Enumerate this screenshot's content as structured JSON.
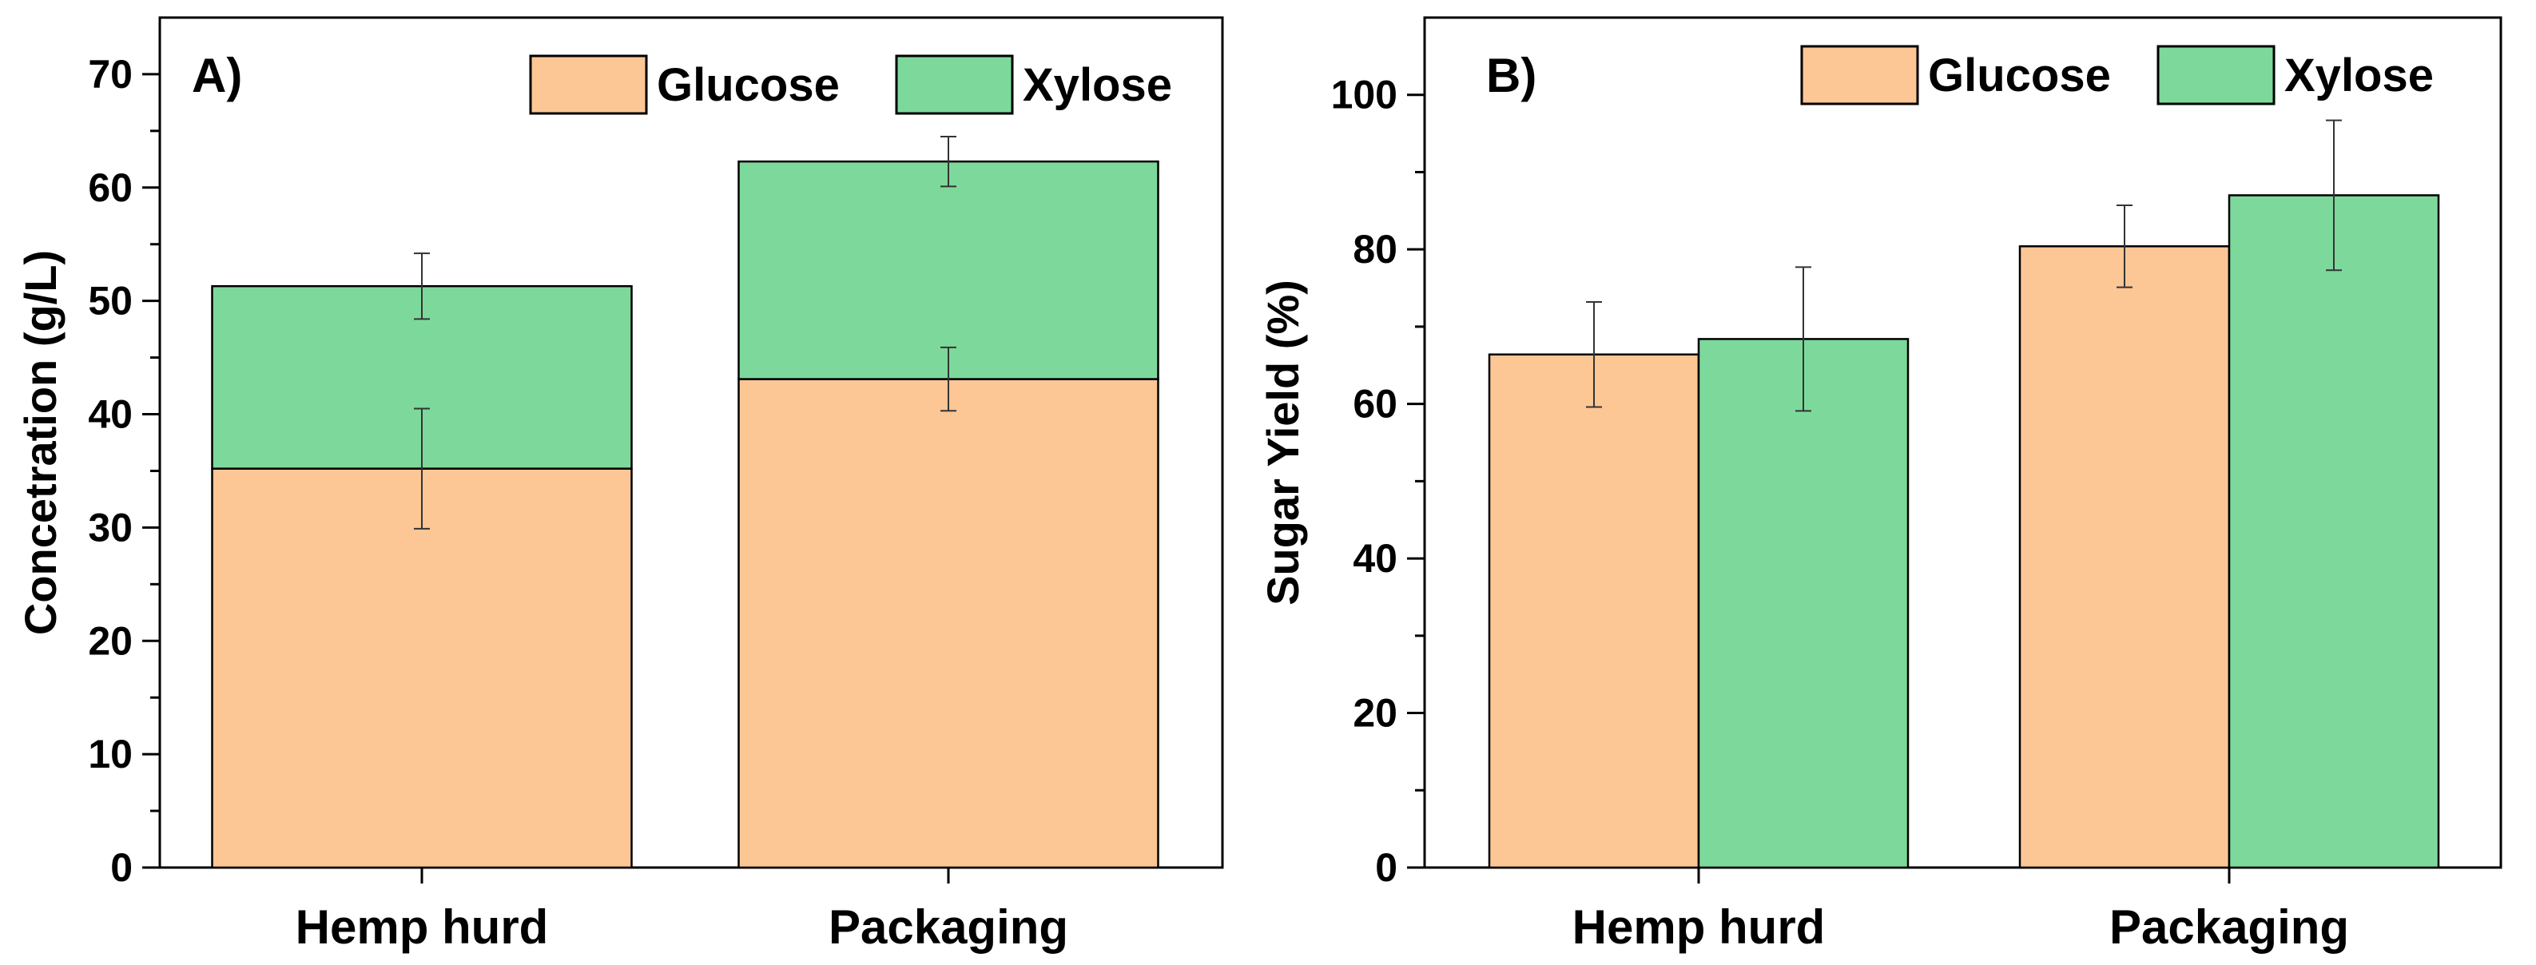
{
  "chart_data": [
    {
      "type": "bar",
      "stacked": true,
      "panel_label": "A)",
      "categories": [
        "Hemp hurd",
        "Packaging"
      ],
      "series": [
        {
          "name": "Glucose",
          "color": "#fcc695",
          "values": [
            35.2,
            43.1
          ],
          "errors": [
            5.3,
            2.8
          ]
        },
        {
          "name": "Xylose",
          "color": "#7dd99b",
          "values": [
            16.1,
            19.2
          ],
          "errors": [
            2.9,
            2.2
          ]
        }
      ],
      "ylabel": "Concetration (g/L)",
      "xlabel": "",
      "ylim": [
        0,
        75
      ],
      "yticks": [
        "0",
        "10",
        "20",
        "30",
        "40",
        "50",
        "60",
        "70"
      ],
      "legend": {
        "position": "top-right",
        "entries": [
          "Glucose",
          "Xylose"
        ]
      }
    },
    {
      "type": "bar",
      "stacked": false,
      "panel_label": "B)",
      "categories": [
        "Hemp hurd",
        "Packaging"
      ],
      "series": [
        {
          "name": "Glucose",
          "color": "#fcc695",
          "values": [
            66.4,
            80.4
          ],
          "errors": [
            6.8,
            5.3
          ]
        },
        {
          "name": "Xylose",
          "color": "#7dd99b",
          "values": [
            68.4,
            87.0
          ],
          "errors": [
            9.3,
            9.7
          ]
        }
      ],
      "ylabel": "Sugar Yield (%)",
      "xlabel": "",
      "ylim": [
        0,
        110
      ],
      "yticks": [
        "0",
        "20",
        "40",
        "60",
        "80",
        "100"
      ],
      "legend": {
        "position": "top-right",
        "entries": [
          "Glucose",
          "Xylose"
        ]
      }
    }
  ]
}
